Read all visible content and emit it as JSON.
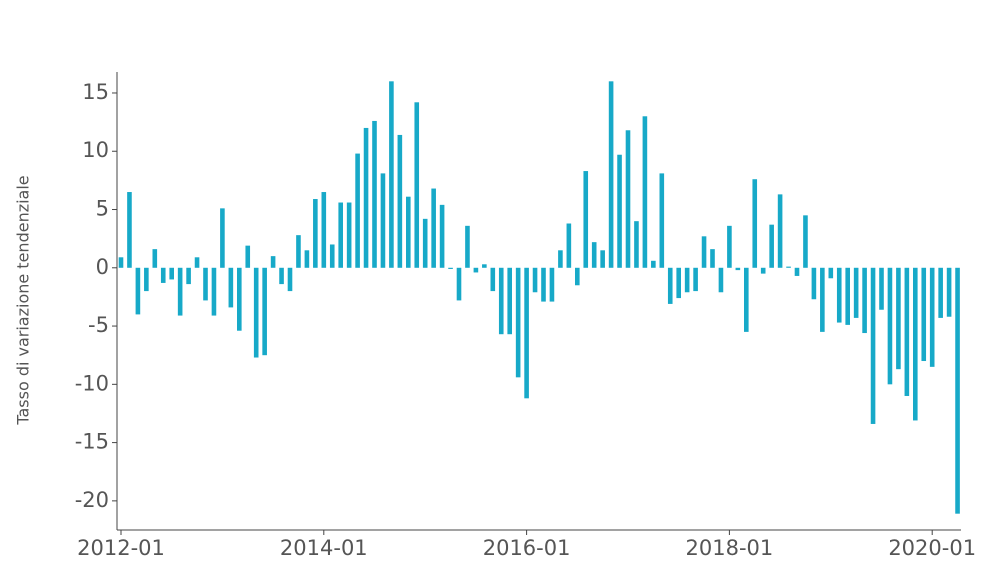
{
  "chart_data": {
    "type": "bar",
    "y_label": "Tasso di variazione tendenziale",
    "color": "#17a9c8",
    "categories": [
      "2012-01",
      "2012-02",
      "2012-03",
      "2012-04",
      "2012-05",
      "2012-06",
      "2012-07",
      "2012-08",
      "2012-09",
      "2012-10",
      "2012-11",
      "2012-12",
      "2013-01",
      "2013-02",
      "2013-03",
      "2013-04",
      "2013-05",
      "2013-06",
      "2013-07",
      "2013-08",
      "2013-09",
      "2013-10",
      "2013-11",
      "2013-12",
      "2014-01",
      "2014-02",
      "2014-03",
      "2014-04",
      "2014-05",
      "2014-06",
      "2014-07",
      "2014-08",
      "2014-09",
      "2014-10",
      "2014-11",
      "2014-12",
      "2015-01",
      "2015-02",
      "2015-03",
      "2015-04",
      "2015-05",
      "2015-06",
      "2015-07",
      "2015-08",
      "2015-09",
      "2015-10",
      "2015-11",
      "2015-12",
      "2016-01",
      "2016-02",
      "2016-03",
      "2016-04",
      "2016-05",
      "2016-06",
      "2016-07",
      "2016-08",
      "2016-09",
      "2016-10",
      "2016-11",
      "2016-12",
      "2017-01",
      "2017-02",
      "2017-03",
      "2017-04",
      "2017-05",
      "2017-06",
      "2017-07",
      "2017-08",
      "2017-09",
      "2017-10",
      "2017-11",
      "2017-12",
      "2018-01",
      "2018-02",
      "2018-03",
      "2018-04",
      "2018-05",
      "2018-06",
      "2018-07",
      "2018-08",
      "2018-09",
      "2018-10",
      "2018-11",
      "2018-12",
      "2019-01",
      "2019-02",
      "2019-03",
      "2019-04",
      "2019-05",
      "2019-06",
      "2019-07",
      "2019-08",
      "2019-09",
      "2019-10",
      "2019-11",
      "2019-12",
      "2020-01",
      "2020-02",
      "2020-03",
      "2020-04"
    ],
    "values": [
      0.9,
      6.5,
      -4.0,
      -2.0,
      1.6,
      -1.3,
      -1.0,
      -4.1,
      -1.4,
      0.9,
      -2.8,
      -4.1,
      5.1,
      -3.4,
      -5.4,
      1.9,
      -7.7,
      -7.5,
      1.0,
      -1.4,
      -2.0,
      2.8,
      1.5,
      5.9,
      6.5,
      2.0,
      5.6,
      5.6,
      9.8,
      12.0,
      12.6,
      8.1,
      16.0,
      11.4,
      6.1,
      14.2,
      4.2,
      6.8,
      5.4,
      -0.1,
      -2.8,
      3.6,
      -0.4,
      0.3,
      -2.0,
      -5.7,
      -5.7,
      -9.4,
      -11.2,
      -2.1,
      -2.9,
      -2.9,
      1.5,
      3.8,
      -1.5,
      8.3,
      2.2,
      1.5,
      16.0,
      9.7,
      11.8,
      4.0,
      13.0,
      0.6,
      8.1,
      -3.1,
      -2.6,
      -2.1,
      -2.0,
      2.7,
      1.6,
      -2.1,
      3.6,
      -0.2,
      -5.5,
      7.6,
      -0.5,
      3.7,
      6.3,
      0.1,
      -0.7,
      4.5,
      -2.7,
      -5.5,
      -0.9,
      -4.7,
      -4.9,
      -4.3,
      -5.6,
      -13.4,
      -3.6,
      -10.0,
      -8.7,
      -11.0,
      -13.1,
      -8.0,
      -8.5,
      -4.3,
      -4.2,
      -21.1
    ],
    "ylim": [
      -22.5,
      16.8
    ],
    "yticks": [
      -20,
      -15,
      -10,
      -5,
      0,
      5,
      10,
      15
    ],
    "xticks": [
      "2012-01",
      "2014-01",
      "2016-01",
      "2018-01",
      "2020-01"
    ]
  }
}
